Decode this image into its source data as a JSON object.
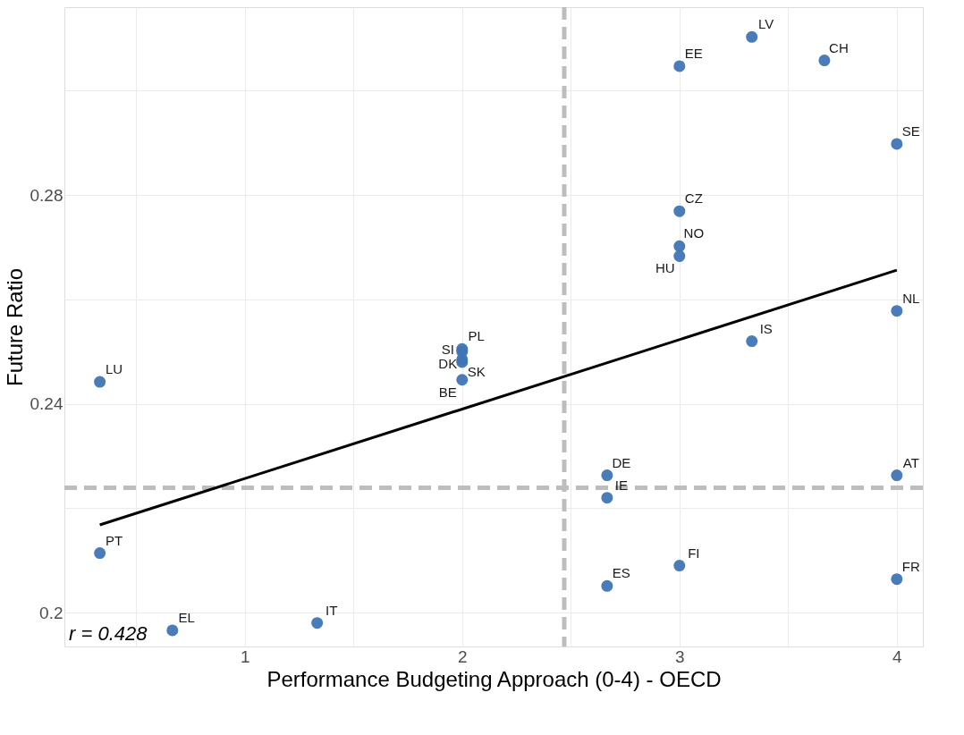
{
  "chart_data": {
    "type": "scatter",
    "xlabel": "Performance Budgeting Approach (0-4) - OECD",
    "ylabel": "Future Ratio",
    "xlim": [
      0.17,
      4.12
    ],
    "ylim": [
      0.1935,
      0.316
    ],
    "xticks": [
      {
        "value": 0.5,
        "label": null
      },
      1,
      {
        "value": 1.5,
        "label": null
      },
      2,
      {
        "value": 2.5,
        "label": null
      },
      3,
      {
        "value": 3.5,
        "label": null
      },
      4
    ],
    "yticks": [
      0.2,
      {
        "value": 0.22,
        "label": null
      },
      0.24,
      {
        "value": 0.26,
        "label": null
      },
      0.28,
      {
        "value": 0.3,
        "label": null
      }
    ],
    "grid": true,
    "series": [
      {
        "color": "#3f75b5",
        "marker": "circle",
        "x": [
          0.333,
          0.333,
          0.667,
          1.333,
          2,
          2,
          2,
          2,
          2,
          2.667,
          2.667,
          2.667,
          3,
          3,
          3,
          3,
          3,
          3.333,
          3.667,
          3.333,
          4,
          4,
          4,
          4
        ],
        "values": [
          0.2442,
          0.2114,
          0.1966,
          0.198,
          0.2505,
          0.25,
          0.248,
          0.2485,
          0.2446,
          0.2263,
          0.222,
          0.2051,
          0.3047,
          0.2769,
          0.2702,
          0.2683,
          0.209,
          0.3103,
          0.3058,
          0.252,
          0.2898,
          0.2578,
          0.2263,
          0.2064
        ]
      },
      {
        "type": "line",
        "color": "#000000",
        "x": [
          0.333,
          4
        ],
        "values": [
          0.2168,
          0.2656
        ]
      }
    ],
    "ref_lines": [
      {
        "axis": "x",
        "value": 2.47,
        "color": "#bdbdbd",
        "line_style": "dashed"
      },
      {
        "axis": "y",
        "value": 0.2239,
        "color": "#bdbdbd",
        "line_style": "dashed"
      }
    ],
    "annotations": [
      {
        "text": "LU",
        "x": 0.333,
        "y": 0.2442
      },
      {
        "text": "PT",
        "x": 0.333,
        "y": 0.2114
      },
      {
        "text": "EL",
        "x": 0.667,
        "y": 0.1966
      },
      {
        "text": "IT",
        "x": 1.333,
        "y": 0.198
      },
      {
        "text": "PL",
        "x": 2,
        "y": 0.2505
      },
      {
        "text": "DK",
        "x": 2,
        "y": 0.25
      },
      {
        "text": "SI",
        "x": 2,
        "y": 0.248
      },
      {
        "text": "SK",
        "x": 2,
        "y": 0.2485
      },
      {
        "text": "BE",
        "x": 2,
        "y": 0.2446
      },
      {
        "text": "DE",
        "x": 2.667,
        "y": 0.2263
      },
      {
        "text": "IE",
        "x": 2.667,
        "y": 0.222
      },
      {
        "text": "ES",
        "x": 2.667,
        "y": 0.2051
      },
      {
        "text": "EE",
        "x": 3,
        "y": 0.3047
      },
      {
        "text": "CZ",
        "x": 3,
        "y": 0.2769
      },
      {
        "text": "NO",
        "x": 3,
        "y": 0.2702
      },
      {
        "text": "HU",
        "x": 3,
        "y": 0.2683
      },
      {
        "text": "FI",
        "x": 3,
        "y": 0.209
      },
      {
        "text": "LV",
        "x": 3.333,
        "y": 0.3103
      },
      {
        "text": "CH",
        "x": 3.667,
        "y": 0.3058
      },
      {
        "text": "IS",
        "x": 3.333,
        "y": 0.252
      },
      {
        "text": "SE",
        "x": 4,
        "y": 0.2898
      },
      {
        "text": "NL",
        "x": 4,
        "y": 0.2578
      },
      {
        "text": "AT",
        "x": 4,
        "y": 0.2263
      },
      {
        "text": "FR",
        "x": 4,
        "y": 0.2064
      },
      "r = 0.428"
    ]
  }
}
